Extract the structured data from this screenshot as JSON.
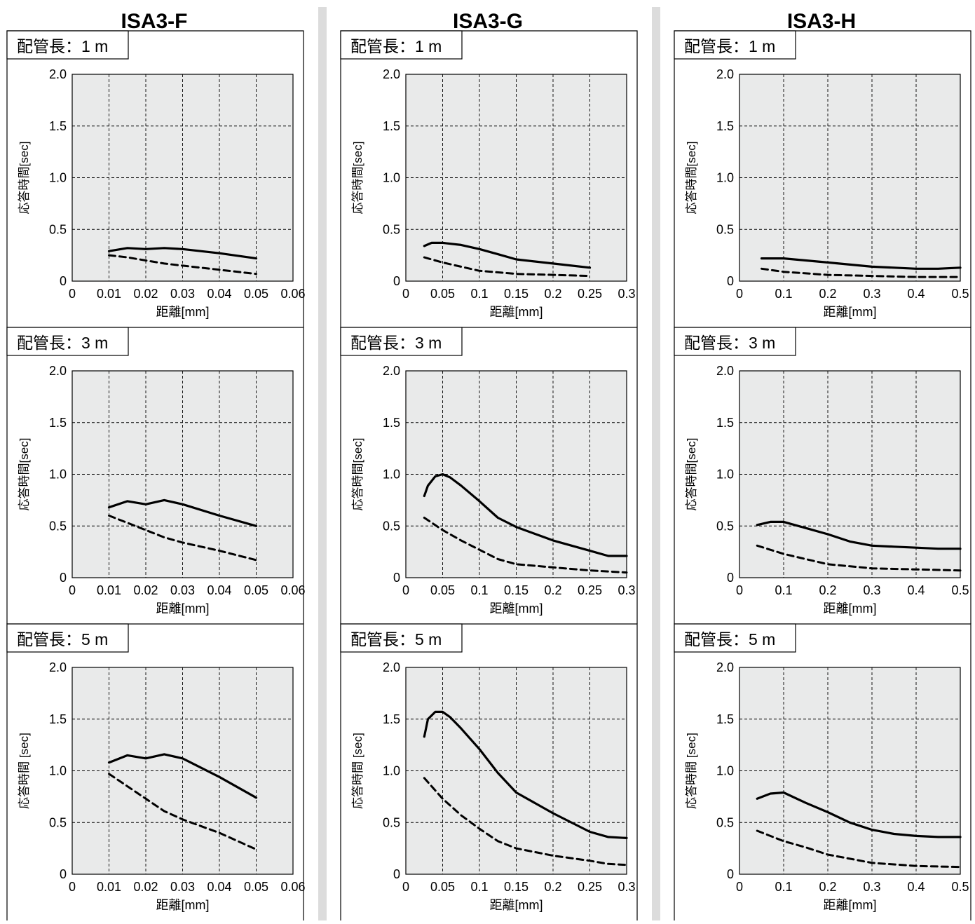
{
  "colors": {
    "plot_bg": "#e9eaea",
    "separator": "#dcdcdc",
    "line": "#000000"
  },
  "columns": [
    {
      "title": "ISA3-F"
    },
    {
      "title": "ISA3-G"
    },
    {
      "title": "ISA3-H"
    }
  ],
  "chart_data": [
    {
      "type": "line",
      "column": "ISA3-F",
      "panel_label": "配管長：1 m",
      "xlabel": "距離[mm]",
      "ylabel": "応答時間[sec]",
      "xlim": [
        0,
        0.06
      ],
      "ylim": [
        0,
        2.0
      ],
      "xticks": [
        0,
        0.01,
        0.02,
        0.03,
        0.04,
        0.05,
        0.06
      ],
      "xtick_labels": [
        "0",
        "0.01",
        "0.02",
        "0.03",
        "0.04",
        "0.05",
        "0.06"
      ],
      "yticks": [
        0,
        0.5,
        1.0,
        1.5,
        2.0
      ],
      "ytick_labels": [
        "0",
        "0.5",
        "1.0",
        "1.5",
        "2.0"
      ],
      "grid": true,
      "series": [
        {
          "style": "solid",
          "x": [
            0.01,
            0.015,
            0.02,
            0.025,
            0.03,
            0.04,
            0.05
          ],
          "y": [
            0.29,
            0.32,
            0.31,
            0.32,
            0.31,
            0.27,
            0.22
          ]
        },
        {
          "style": "dashed",
          "x": [
            0.01,
            0.015,
            0.02,
            0.025,
            0.03,
            0.04,
            0.05
          ],
          "y": [
            0.25,
            0.23,
            0.2,
            0.17,
            0.15,
            0.11,
            0.07
          ]
        }
      ]
    },
    {
      "type": "line",
      "column": "ISA3-G",
      "panel_label": "配管長：1 m",
      "xlabel": "距離[mm]",
      "ylabel": "応答時間[sec]",
      "xlim": [
        0,
        0.3
      ],
      "ylim": [
        0,
        2.0
      ],
      "xticks": [
        0,
        0.05,
        0.1,
        0.15,
        0.2,
        0.25,
        0.3
      ],
      "xtick_labels": [
        "0",
        "0.05",
        "0.1",
        "0.15",
        "0.2",
        "0.25",
        "0.3"
      ],
      "yticks": [
        0,
        0.5,
        1.0,
        1.5,
        2.0
      ],
      "ytick_labels": [
        "0",
        "0.5",
        "1.0",
        "1.5",
        "2.0"
      ],
      "grid": true,
      "series": [
        {
          "style": "solid",
          "x": [
            0.025,
            0.035,
            0.05,
            0.075,
            0.1,
            0.125,
            0.15,
            0.2,
            0.25
          ],
          "y": [
            0.34,
            0.37,
            0.37,
            0.35,
            0.31,
            0.26,
            0.21,
            0.17,
            0.13
          ]
        },
        {
          "style": "dashed",
          "x": [
            0.025,
            0.05,
            0.075,
            0.1,
            0.15,
            0.2,
            0.25
          ],
          "y": [
            0.23,
            0.18,
            0.14,
            0.1,
            0.07,
            0.06,
            0.05
          ]
        }
      ]
    },
    {
      "type": "line",
      "column": "ISA3-H",
      "panel_label": "配管長：1 m",
      "xlabel": "距離[mm]",
      "ylabel": "応答時間[sec]",
      "xlim": [
        0,
        0.5
      ],
      "ylim": [
        0,
        2.0
      ],
      "xticks": [
        0,
        0.1,
        0.2,
        0.3,
        0.4,
        0.5
      ],
      "xtick_labels": [
        "0",
        "0.1",
        "0.2",
        "0.3",
        "0.4",
        "0.5"
      ],
      "yticks": [
        0,
        0.5,
        1.0,
        1.5,
        2.0
      ],
      "ytick_labels": [
        "0",
        "0.5",
        "1.0",
        "1.5",
        "2.0"
      ],
      "grid": true,
      "series": [
        {
          "style": "solid",
          "x": [
            0.05,
            0.1,
            0.15,
            0.2,
            0.25,
            0.3,
            0.35,
            0.4,
            0.45,
            0.5
          ],
          "y": [
            0.22,
            0.22,
            0.2,
            0.18,
            0.16,
            0.14,
            0.13,
            0.12,
            0.12,
            0.13
          ]
        },
        {
          "style": "dashed",
          "x": [
            0.05,
            0.1,
            0.2,
            0.3,
            0.4,
            0.5
          ],
          "y": [
            0.12,
            0.09,
            0.06,
            0.05,
            0.04,
            0.04
          ]
        }
      ]
    },
    {
      "type": "line",
      "column": "ISA3-F",
      "panel_label": "配管長：3 m",
      "xlabel": "距離[mm]",
      "ylabel": "応答時間[sec]",
      "xlim": [
        0,
        0.06
      ],
      "ylim": [
        0,
        2.0
      ],
      "xticks": [
        0,
        0.01,
        0.02,
        0.03,
        0.04,
        0.05,
        0.06
      ],
      "xtick_labels": [
        "0",
        "0.01",
        "0.02",
        "0.03",
        "0.04",
        "0.05",
        "0.06"
      ],
      "yticks": [
        0,
        0.5,
        1.0,
        1.5,
        2.0
      ],
      "ytick_labels": [
        "0",
        "0.5",
        "1.0",
        "1.5",
        "2.0"
      ],
      "grid": true,
      "series": [
        {
          "style": "solid",
          "x": [
            0.01,
            0.015,
            0.02,
            0.025,
            0.03,
            0.04,
            0.05
          ],
          "y": [
            0.68,
            0.74,
            0.71,
            0.75,
            0.71,
            0.6,
            0.5
          ]
        },
        {
          "style": "dashed",
          "x": [
            0.01,
            0.015,
            0.02,
            0.025,
            0.03,
            0.04,
            0.05
          ],
          "y": [
            0.6,
            0.53,
            0.46,
            0.39,
            0.34,
            0.26,
            0.17
          ]
        }
      ]
    },
    {
      "type": "line",
      "column": "ISA3-G",
      "panel_label": "配管長：3 m",
      "xlabel": "距離[mm]",
      "ylabel": "応答時間[sec]",
      "xlim": [
        0,
        0.3
      ],
      "ylim": [
        0,
        2.0
      ],
      "xticks": [
        0,
        0.05,
        0.1,
        0.15,
        0.2,
        0.25,
        0.3
      ],
      "xtick_labels": [
        "0",
        "0.05",
        "0.1",
        "0.15",
        "0.2",
        "0.25",
        "0.3"
      ],
      "yticks": [
        0,
        0.5,
        1.0,
        1.5,
        2.0
      ],
      "ytick_labels": [
        "0",
        "0.5",
        "1.0",
        "1.5",
        "2.0"
      ],
      "grid": true,
      "series": [
        {
          "style": "solid",
          "x": [
            0.025,
            0.03,
            0.04,
            0.05,
            0.06,
            0.075,
            0.1,
            0.125,
            0.15,
            0.2,
            0.25,
            0.275,
            0.3
          ],
          "y": [
            0.79,
            0.89,
            0.98,
            1.0,
            0.97,
            0.89,
            0.74,
            0.58,
            0.49,
            0.36,
            0.26,
            0.21,
            0.21
          ]
        },
        {
          "style": "dashed",
          "x": [
            0.025,
            0.05,
            0.075,
            0.1,
            0.125,
            0.15,
            0.2,
            0.25,
            0.3
          ],
          "y": [
            0.58,
            0.46,
            0.36,
            0.27,
            0.18,
            0.13,
            0.1,
            0.07,
            0.05
          ]
        }
      ]
    },
    {
      "type": "line",
      "column": "ISA3-H",
      "panel_label": "配管長：3 m",
      "xlabel": "距離[mm]",
      "ylabel": "応答時間[sec]",
      "xlim": [
        0,
        0.5
      ],
      "ylim": [
        0,
        2.0
      ],
      "xticks": [
        0,
        0.1,
        0.2,
        0.3,
        0.4,
        0.5
      ],
      "xtick_labels": [
        "0",
        "0.1",
        "0.2",
        "0.3",
        "0.4",
        "0.5"
      ],
      "yticks": [
        0,
        0.5,
        1.0,
        1.5,
        2.0
      ],
      "ytick_labels": [
        "0",
        "0.5",
        "1.0",
        "1.5",
        "2.0"
      ],
      "grid": true,
      "series": [
        {
          "style": "solid",
          "x": [
            0.04,
            0.07,
            0.1,
            0.15,
            0.2,
            0.25,
            0.3,
            0.35,
            0.4,
            0.45,
            0.5
          ],
          "y": [
            0.51,
            0.54,
            0.54,
            0.48,
            0.42,
            0.35,
            0.31,
            0.3,
            0.29,
            0.28,
            0.28
          ]
        },
        {
          "style": "dashed",
          "x": [
            0.04,
            0.1,
            0.15,
            0.2,
            0.3,
            0.4,
            0.5
          ],
          "y": [
            0.31,
            0.23,
            0.18,
            0.13,
            0.09,
            0.08,
            0.07
          ]
        }
      ]
    },
    {
      "type": "line",
      "column": "ISA3-F",
      "panel_label": "配管長：5 m",
      "xlabel": "距離[mm]",
      "ylabel": "応答時間 [sec]",
      "xlim": [
        0,
        0.06
      ],
      "ylim": [
        0,
        2.0
      ],
      "xticks": [
        0,
        0.01,
        0.02,
        0.03,
        0.04,
        0.05,
        0.06
      ],
      "xtick_labels": [
        "0",
        "0.01",
        "0.02",
        "0.03",
        "0.04",
        "0.05",
        "0.06"
      ],
      "yticks": [
        0,
        0.5,
        1.0,
        1.5,
        2.0
      ],
      "ytick_labels": [
        "0",
        "0.5",
        "1.0",
        "1.5",
        "2.0"
      ],
      "grid": true,
      "series": [
        {
          "style": "solid",
          "x": [
            0.01,
            0.015,
            0.02,
            0.025,
            0.03,
            0.04,
            0.05
          ],
          "y": [
            1.08,
            1.15,
            1.12,
            1.16,
            1.12,
            0.94,
            0.74
          ]
        },
        {
          "style": "dashed",
          "x": [
            0.01,
            0.015,
            0.02,
            0.025,
            0.03,
            0.04,
            0.05
          ],
          "y": [
            0.97,
            0.85,
            0.73,
            0.61,
            0.53,
            0.4,
            0.24
          ]
        }
      ]
    },
    {
      "type": "line",
      "column": "ISA3-G",
      "panel_label": "配管長：5 m",
      "xlabel": "距離[mm]",
      "ylabel": "応答時間 [sec]",
      "xlim": [
        0,
        0.3
      ],
      "ylim": [
        0,
        2.0
      ],
      "xticks": [
        0,
        0.05,
        0.1,
        0.15,
        0.2,
        0.25,
        0.3
      ],
      "xtick_labels": [
        "0",
        "0.05",
        "0.1",
        "0.15",
        "0.2",
        "0.25",
        "0.3"
      ],
      "yticks": [
        0,
        0.5,
        1.0,
        1.5,
        2.0
      ],
      "ytick_labels": [
        "0",
        "0.5",
        "1.0",
        "1.5",
        "2.0"
      ],
      "grid": true,
      "series": [
        {
          "style": "solid",
          "x": [
            0.025,
            0.03,
            0.04,
            0.05,
            0.06,
            0.075,
            0.1,
            0.125,
            0.15,
            0.2,
            0.25,
            0.275,
            0.3
          ],
          "y": [
            1.33,
            1.5,
            1.57,
            1.57,
            1.52,
            1.41,
            1.21,
            0.98,
            0.79,
            0.59,
            0.41,
            0.36,
            0.35
          ]
        },
        {
          "style": "dashed",
          "x": [
            0.025,
            0.05,
            0.075,
            0.1,
            0.125,
            0.15,
            0.2,
            0.25,
            0.275,
            0.3
          ],
          "y": [
            0.93,
            0.73,
            0.57,
            0.44,
            0.32,
            0.25,
            0.18,
            0.13,
            0.1,
            0.09
          ]
        }
      ]
    },
    {
      "type": "line",
      "column": "ISA3-H",
      "panel_label": "配管長：5 m",
      "xlabel": "距離[mm]",
      "ylabel": "応答時間 [sec]",
      "xlim": [
        0,
        0.5
      ],
      "ylim": [
        0,
        2.0
      ],
      "xticks": [
        0,
        0.1,
        0.2,
        0.3,
        0.4,
        0.5
      ],
      "xtick_labels": [
        "0",
        "0.1",
        "0.2",
        "0.3",
        "0.4",
        "0.5"
      ],
      "yticks": [
        0,
        0.5,
        1.0,
        1.5,
        2.0
      ],
      "ytick_labels": [
        "0",
        "0.5",
        "1.0",
        "1.5",
        "2.0"
      ],
      "grid": true,
      "series": [
        {
          "style": "solid",
          "x": [
            0.04,
            0.07,
            0.1,
            0.15,
            0.2,
            0.25,
            0.3,
            0.35,
            0.4,
            0.45,
            0.5
          ],
          "y": [
            0.73,
            0.78,
            0.79,
            0.69,
            0.6,
            0.5,
            0.43,
            0.39,
            0.37,
            0.36,
            0.36
          ]
        },
        {
          "style": "dashed",
          "x": [
            0.04,
            0.1,
            0.15,
            0.2,
            0.3,
            0.4,
            0.5
          ],
          "y": [
            0.42,
            0.32,
            0.26,
            0.19,
            0.11,
            0.08,
            0.07
          ]
        }
      ]
    }
  ]
}
